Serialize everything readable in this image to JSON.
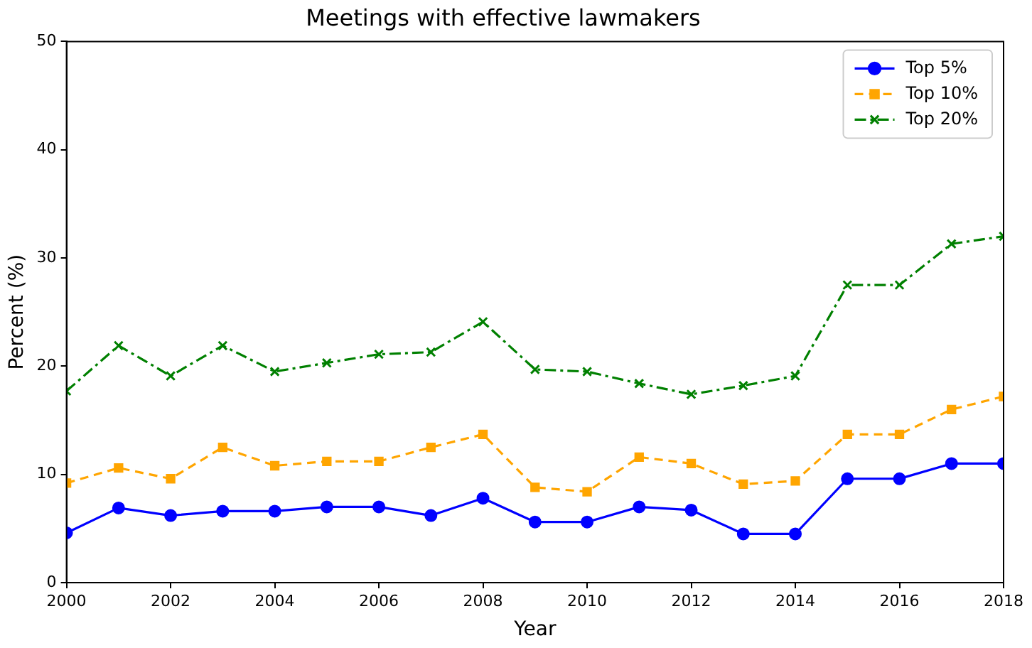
{
  "chart_data": {
    "type": "line",
    "title": "Meetings with effective lawmakers",
    "xlabel": "Year",
    "ylabel": "Percent (%)",
    "x": [
      2000,
      2001,
      2002,
      2003,
      2004,
      2005,
      2006,
      2007,
      2008,
      2009,
      2010,
      2011,
      2012,
      2013,
      2014,
      2015,
      2016,
      2017,
      2018
    ],
    "series": [
      {
        "name": "Top 5%",
        "color": "#0000ff",
        "marker": "circle",
        "line_style": "solid",
        "values": [
          4.6,
          6.9,
          6.2,
          6.6,
          6.6,
          7.0,
          7.0,
          6.2,
          7.8,
          5.6,
          5.6,
          7.0,
          6.7,
          4.5,
          4.5,
          9.6,
          9.6,
          11.0,
          11.0
        ]
      },
      {
        "name": "Top 10%",
        "color": "#ffa500",
        "marker": "square",
        "line_style": "dashed",
        "values": [
          9.2,
          10.6,
          9.6,
          12.5,
          10.8,
          11.2,
          11.2,
          12.5,
          13.7,
          8.8,
          8.4,
          11.6,
          11.0,
          9.1,
          9.4,
          13.7,
          13.7,
          16.0,
          17.2
        ]
      },
      {
        "name": "Top 20%",
        "color": "#008000",
        "marker": "cross",
        "line_style": "dashdot",
        "values": [
          17.7,
          21.9,
          19.1,
          21.9,
          19.5,
          20.3,
          21.1,
          21.3,
          24.1,
          19.7,
          19.5,
          18.4,
          17.4,
          18.2,
          19.1,
          27.5,
          27.5,
          31.3,
          32.0
        ]
      }
    ],
    "xlim": [
      2000,
      2018
    ],
    "xticks": [
      2000,
      2002,
      2004,
      2006,
      2008,
      2010,
      2012,
      2014,
      2016,
      2018
    ],
    "ylim": [
      0,
      50
    ],
    "yticks": [
      0,
      10,
      20,
      30,
      40,
      50
    ],
    "grid": false,
    "legend": "top right"
  }
}
